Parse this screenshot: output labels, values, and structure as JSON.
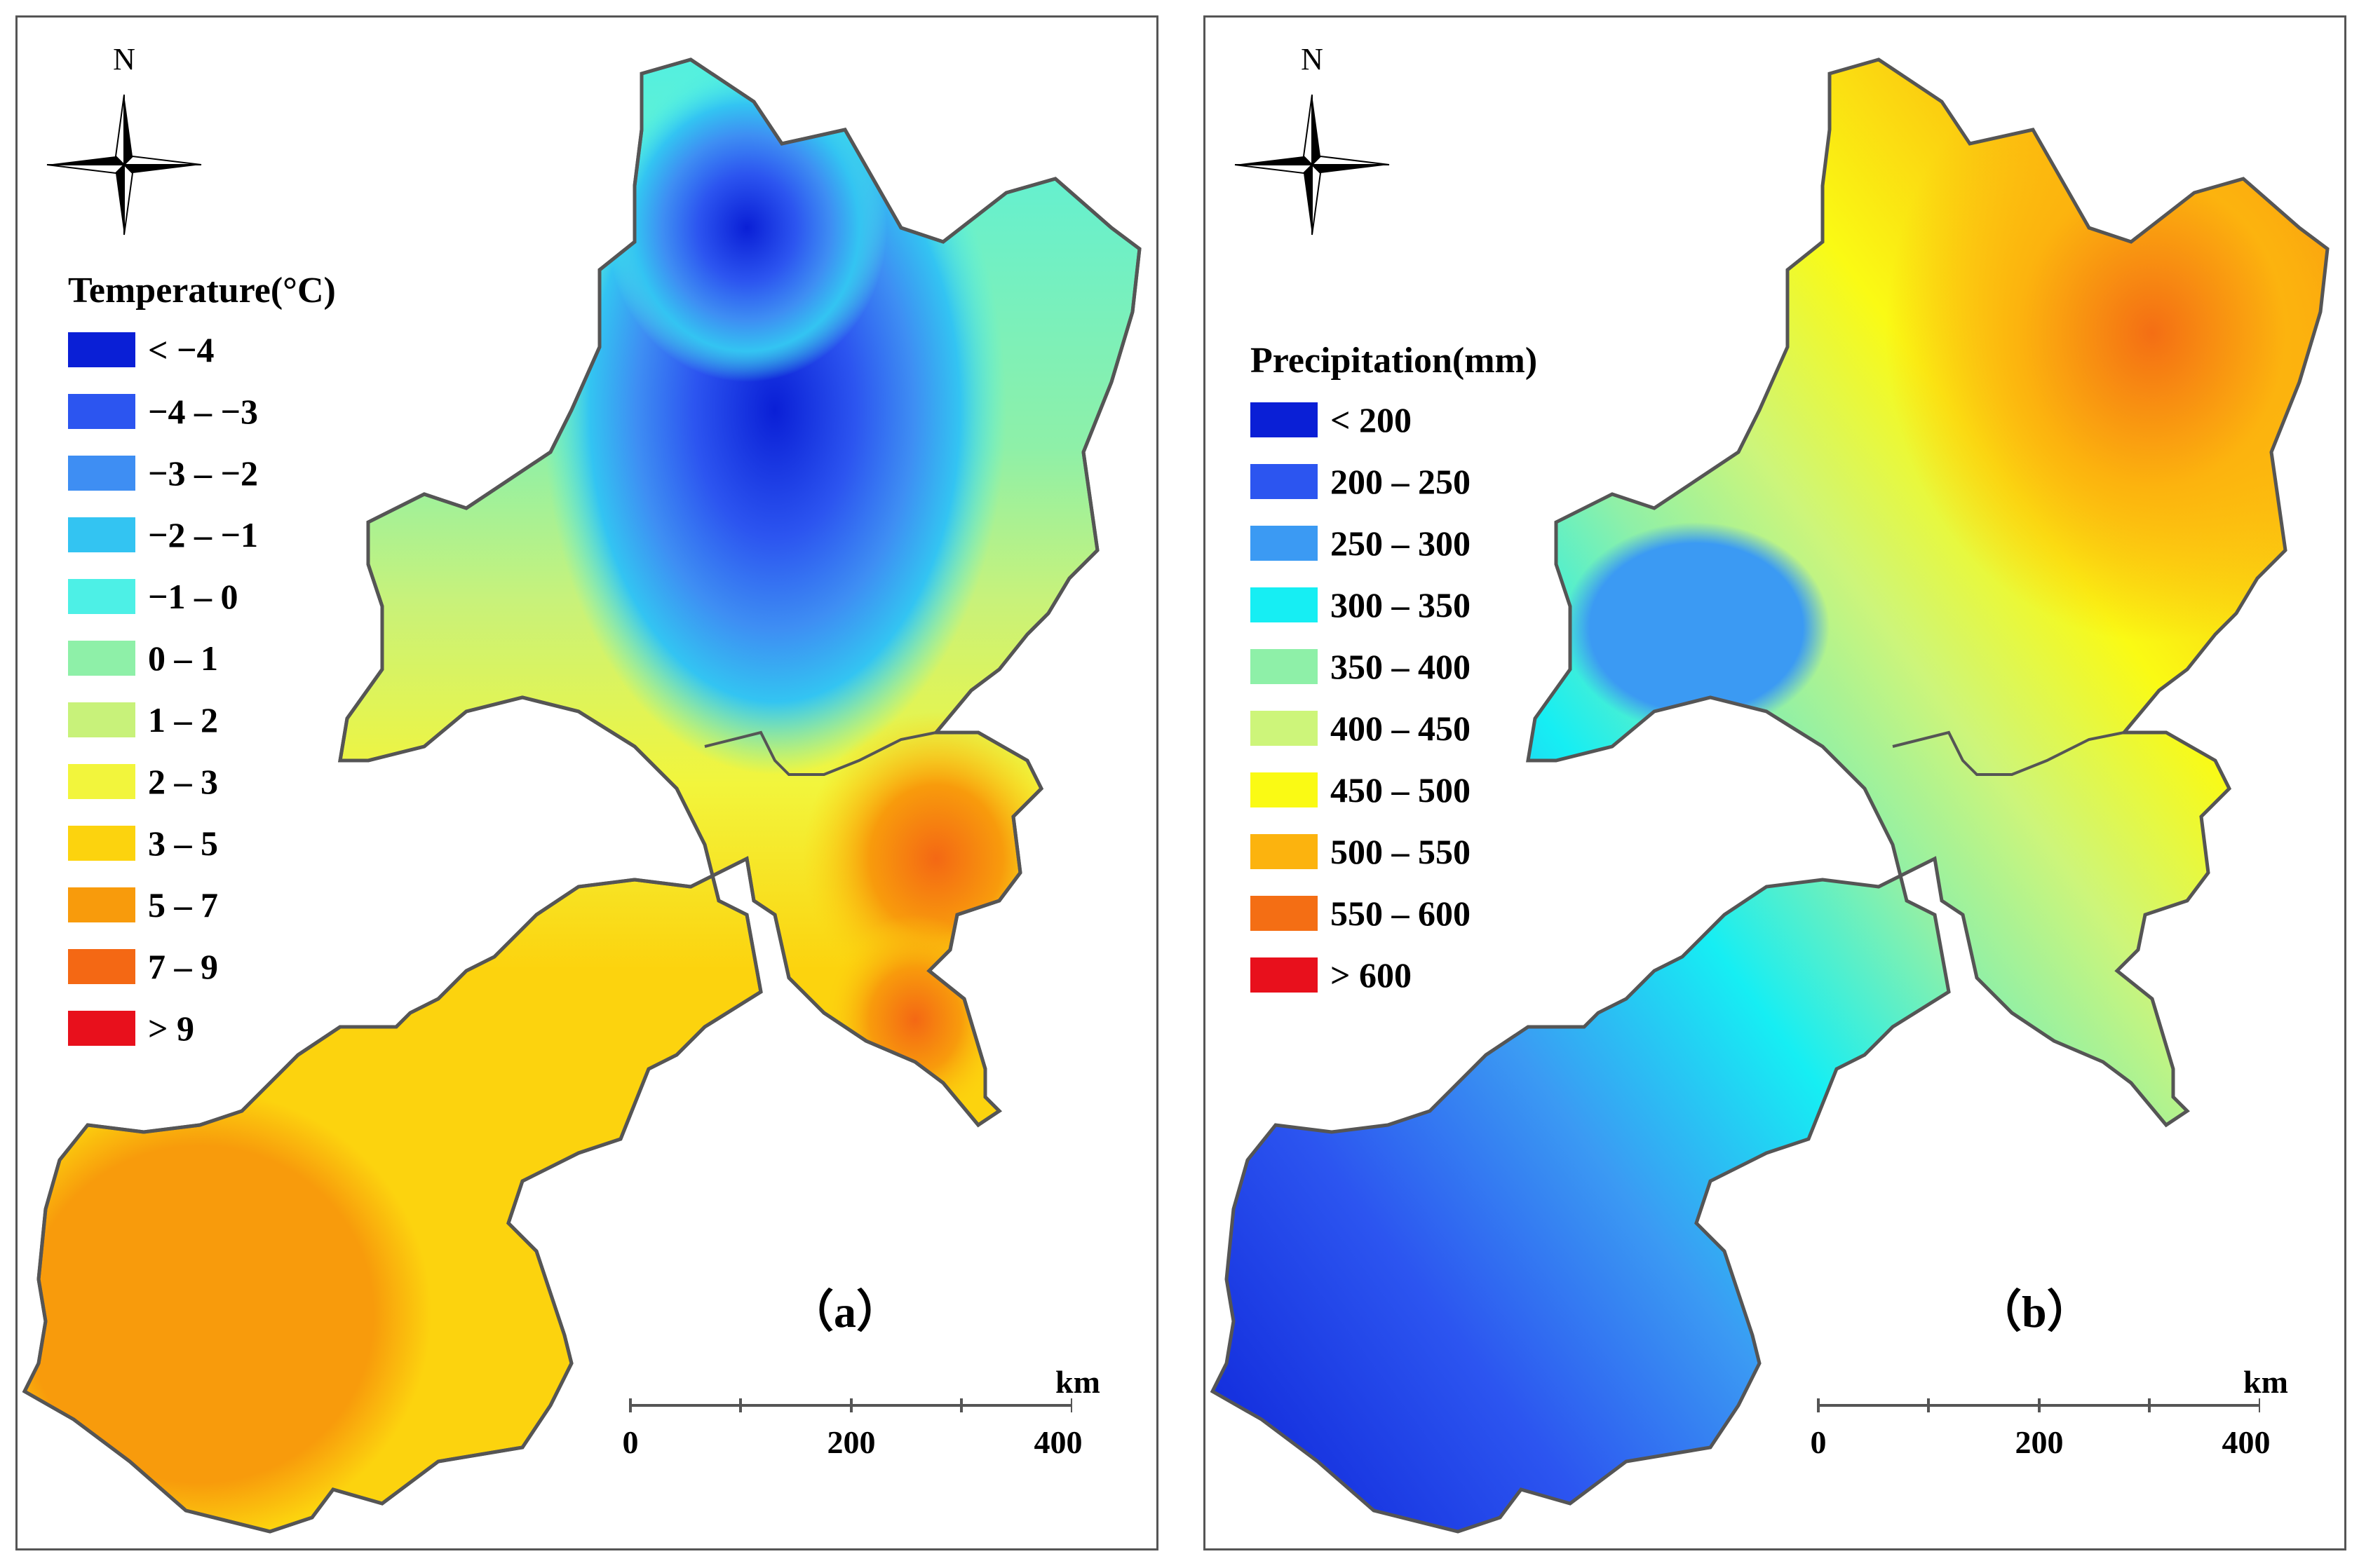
{
  "panels": [
    {
      "id": "a",
      "label": "（a）",
      "north": "N",
      "legend_title": "Temperature(°C)",
      "legend": [
        {
          "label": "< −4",
          "color": "#0a1fd6"
        },
        {
          "label": "−4 – −3",
          "color": "#2c55f0"
        },
        {
          "label": "−3 – −2",
          "color": "#3e8ef3"
        },
        {
          "label": "−2 – −1",
          "color": "#33c4f2"
        },
        {
          "label": "−1 – 0",
          "color": "#4df0e6"
        },
        {
          "label": "0 – 1",
          "color": "#8ef0a8"
        },
        {
          "label": "1 – 2",
          "color": "#c8f27a"
        },
        {
          "label": "2 – 3",
          "color": "#f2f53c"
        },
        {
          "label": "3 – 5",
          "color": "#fcd30e"
        },
        {
          "label": "5 – 7",
          "color": "#f89b0c"
        },
        {
          "label": "7 – 9",
          "color": "#f46814"
        },
        {
          "label": "> 9",
          "color": "#e8101c"
        }
      ],
      "scale": {
        "ticks": [
          "0",
          "200",
          "400"
        ],
        "unit": "km"
      }
    },
    {
      "id": "b",
      "label": "（b）",
      "north": "N",
      "legend_title": "Precipitation(mm)",
      "legend": [
        {
          "label": "< 200",
          "color": "#0a1fd6"
        },
        {
          "label": "200 – 250",
          "color": "#2c55f0"
        },
        {
          "label": "250 – 300",
          "color": "#3b9af3"
        },
        {
          "label": "300 – 350",
          "color": "#16eef3"
        },
        {
          "label": "350 – 400",
          "color": "#8ef0a8"
        },
        {
          "label": "400 – 450",
          "color": "#cdf57a"
        },
        {
          "label": "450 – 500",
          "color": "#fafa14"
        },
        {
          "label": "500 – 550",
          "color": "#fcb30e"
        },
        {
          "label": "550 – 600",
          "color": "#f46e14"
        },
        {
          "label": "> 600",
          "color": "#e8101c"
        }
      ],
      "scale": {
        "ticks": [
          "0",
          "200",
          "400"
        ],
        "unit": "km"
      }
    }
  ]
}
